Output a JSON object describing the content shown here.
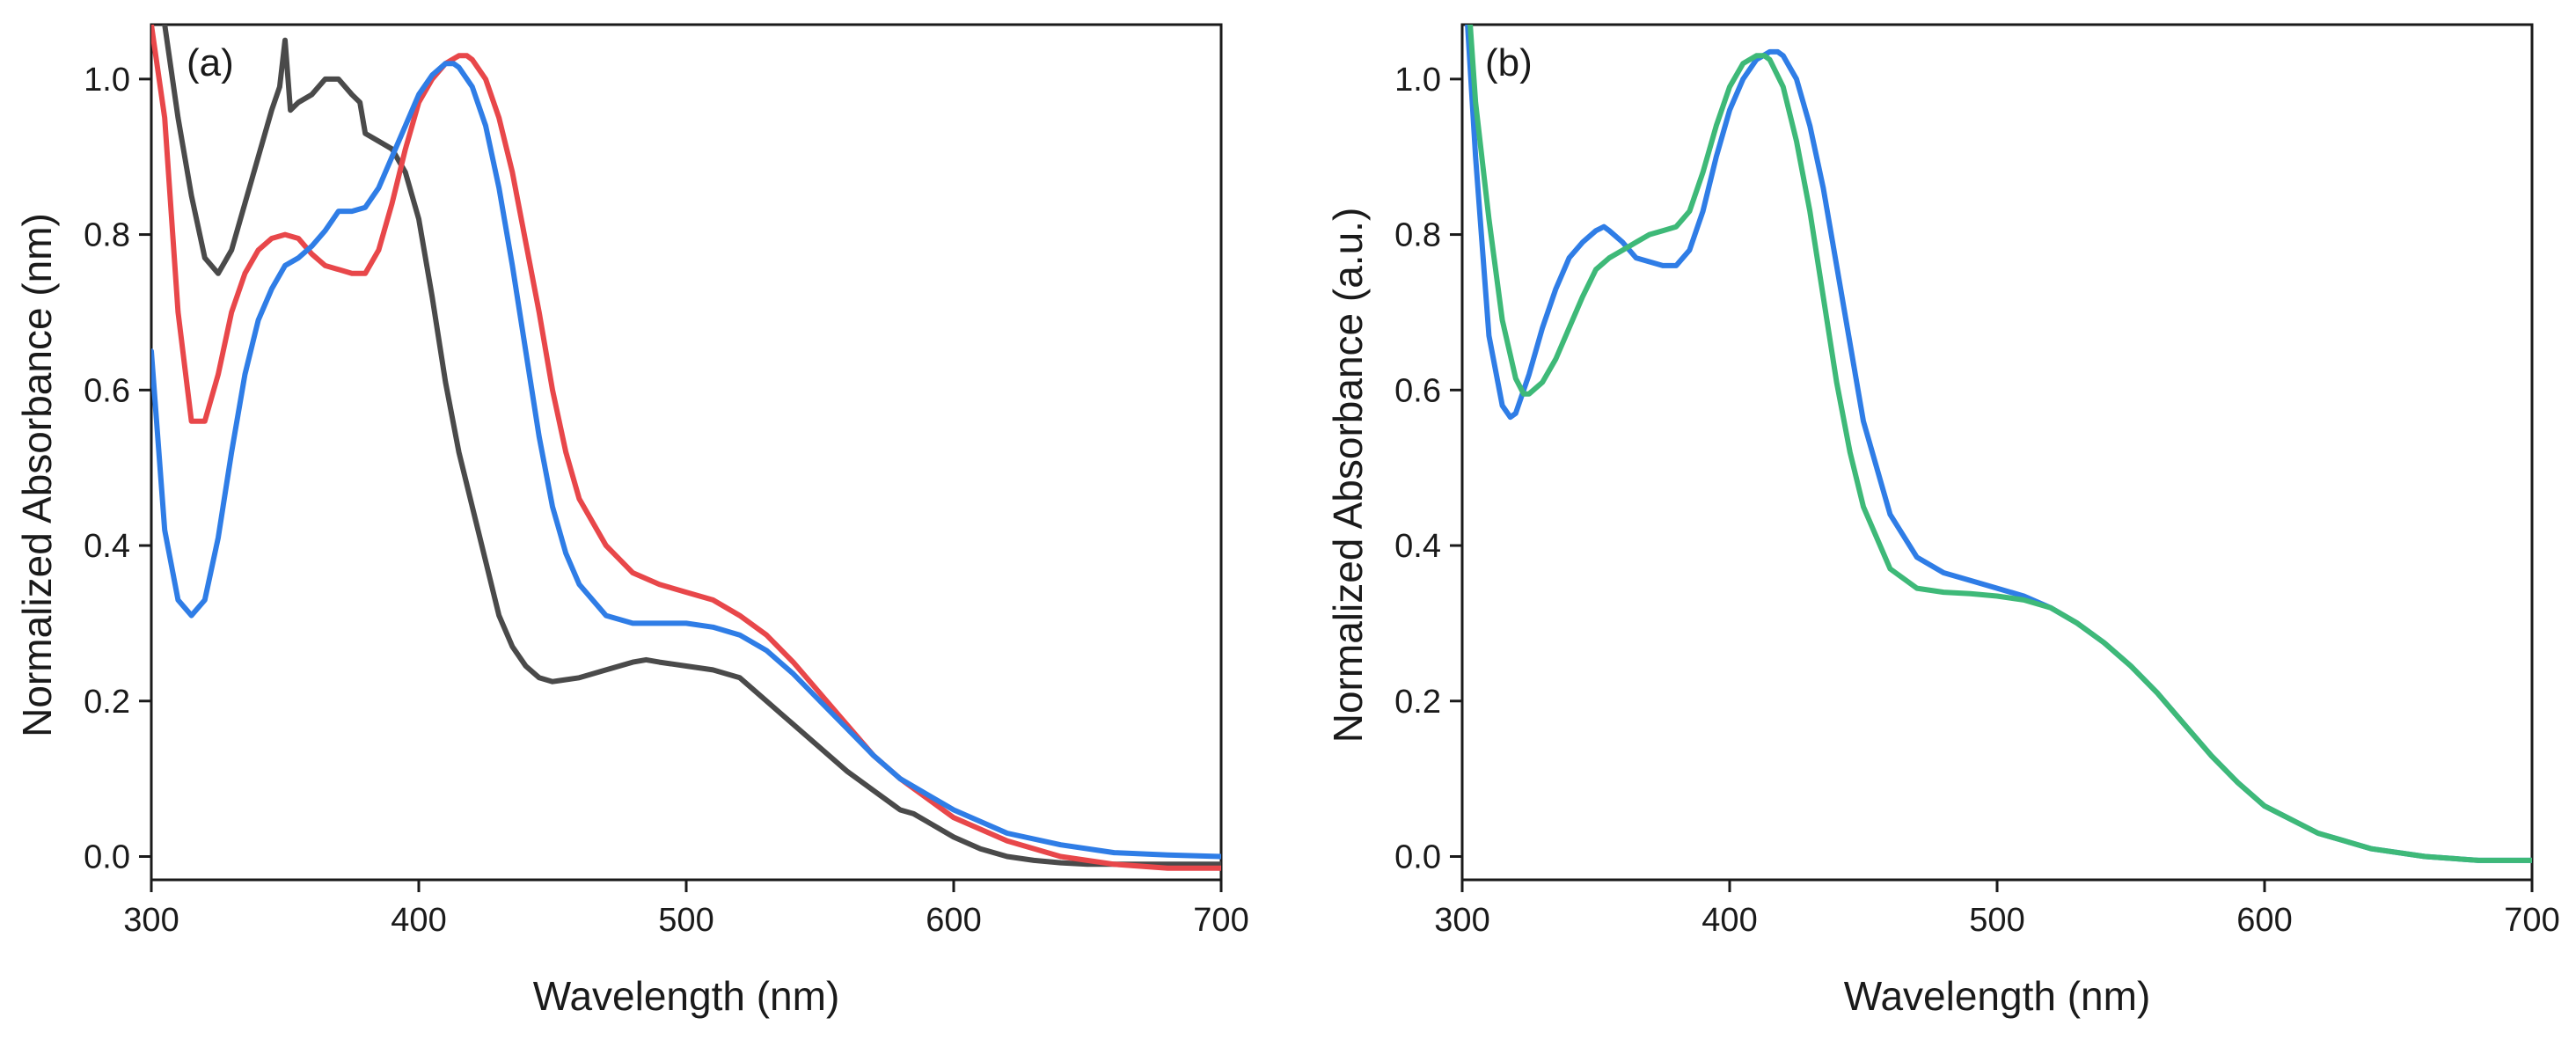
{
  "chart_data": [
    {
      "id": "a",
      "type": "line",
      "panel_label": "(a)",
      "xlabel": "Wavelength (nm)",
      "ylabel": "Normalized Absorbance (nm)",
      "xlim": [
        300,
        700
      ],
      "ylim": [
        -0.03,
        1.07
      ],
      "xticks": [
        300,
        400,
        500,
        600,
        700
      ],
      "xtick_labels": [
        "300",
        "400",
        "500",
        "600",
        "700"
      ],
      "yticks": [
        0.0,
        0.2,
        0.4,
        0.6,
        0.8,
        1.0
      ],
      "ytick_labels": [
        "0.0",
        "0.2",
        "0.4",
        "0.6",
        "0.8",
        "1.0"
      ],
      "grid": false,
      "series": [
        {
          "color": "#4a4a4a",
          "x": [
            305,
            310,
            315,
            320,
            325,
            330,
            335,
            340,
            345,
            348,
            350,
            352,
            355,
            360,
            365,
            370,
            375,
            378,
            380,
            385,
            390,
            395,
            400,
            405,
            410,
            415,
            420,
            425,
            430,
            435,
            440,
            445,
            450,
            460,
            470,
            480,
            485,
            490,
            500,
            510,
            520,
            530,
            540,
            550,
            560,
            570,
            580,
            585,
            590,
            600,
            610,
            620,
            630,
            640,
            650,
            660,
            680,
            700
          ],
          "y": [
            1.07,
            0.95,
            0.85,
            0.77,
            0.75,
            0.78,
            0.84,
            0.9,
            0.96,
            0.99,
            1.05,
            0.96,
            0.97,
            0.98,
            1.0,
            1.0,
            0.98,
            0.97,
            0.93,
            0.92,
            0.91,
            0.88,
            0.82,
            0.72,
            0.61,
            0.52,
            0.45,
            0.38,
            0.31,
            0.27,
            0.245,
            0.23,
            0.225,
            0.23,
            0.24,
            0.25,
            0.253,
            0.25,
            0.245,
            0.24,
            0.23,
            0.2,
            0.17,
            0.14,
            0.11,
            0.085,
            0.06,
            0.055,
            0.045,
            0.025,
            0.01,
            0.0,
            -0.005,
            -0.008,
            -0.01,
            -0.01,
            -0.01,
            -0.01
          ]
        },
        {
          "color": "#e8474a",
          "x": [
            300,
            305,
            310,
            315,
            320,
            325,
            330,
            335,
            340,
            345,
            350,
            355,
            360,
            365,
            370,
            375,
            380,
            385,
            390,
            395,
            400,
            405,
            410,
            415,
            418,
            420,
            425,
            430,
            435,
            440,
            445,
            450,
            455,
            460,
            470,
            480,
            490,
            500,
            510,
            520,
            530,
            540,
            550,
            560,
            570,
            580,
            590,
            600,
            620,
            640,
            660,
            680,
            700
          ],
          "y": [
            1.07,
            0.95,
            0.7,
            0.56,
            0.56,
            0.62,
            0.7,
            0.75,
            0.78,
            0.795,
            0.8,
            0.795,
            0.775,
            0.76,
            0.755,
            0.75,
            0.75,
            0.78,
            0.84,
            0.91,
            0.97,
            1.0,
            1.02,
            1.03,
            1.03,
            1.025,
            1.0,
            0.95,
            0.88,
            0.79,
            0.7,
            0.6,
            0.52,
            0.46,
            0.4,
            0.365,
            0.35,
            0.34,
            0.33,
            0.31,
            0.285,
            0.25,
            0.21,
            0.17,
            0.13,
            0.1,
            0.075,
            0.05,
            0.02,
            0.0,
            -0.01,
            -0.015,
            -0.015
          ]
        },
        {
          "color": "#2f7de6",
          "x": [
            300,
            305,
            310,
            315,
            320,
            325,
            330,
            335,
            340,
            345,
            350,
            355,
            360,
            365,
            370,
            375,
            380,
            385,
            390,
            395,
            400,
            405,
            410,
            413,
            415,
            420,
            425,
            430,
            435,
            440,
            445,
            450,
            455,
            460,
            470,
            480,
            490,
            500,
            510,
            520,
            530,
            540,
            550,
            560,
            570,
            580,
            590,
            600,
            620,
            640,
            660,
            680,
            700
          ],
          "y": [
            0.65,
            0.42,
            0.33,
            0.31,
            0.33,
            0.41,
            0.52,
            0.62,
            0.69,
            0.73,
            0.76,
            0.77,
            0.785,
            0.805,
            0.83,
            0.83,
            0.835,
            0.86,
            0.9,
            0.94,
            0.98,
            1.005,
            1.02,
            1.02,
            1.015,
            0.99,
            0.94,
            0.86,
            0.76,
            0.65,
            0.54,
            0.45,
            0.39,
            0.35,
            0.31,
            0.3,
            0.3,
            0.3,
            0.295,
            0.285,
            0.265,
            0.235,
            0.2,
            0.165,
            0.13,
            0.1,
            0.08,
            0.06,
            0.03,
            0.015,
            0.005,
            0.002,
            0.0
          ]
        }
      ]
    },
    {
      "id": "b",
      "type": "line",
      "panel_label": "(b)",
      "xlabel": "Wavelength (nm)",
      "ylabel": "Normalized Absorbance (a.u.)",
      "xlim": [
        300,
        700
      ],
      "ylim": [
        -0.03,
        1.07
      ],
      "xticks": [
        300,
        400,
        500,
        600,
        700
      ],
      "xtick_labels": [
        "300",
        "400",
        "500",
        "600",
        "700"
      ],
      "yticks": [
        0.0,
        0.2,
        0.4,
        0.6,
        0.8,
        1.0
      ],
      "ytick_labels": [
        "0.0",
        "0.2",
        "0.4",
        "0.6",
        "0.8",
        "1.0"
      ],
      "grid": false,
      "series": [
        {
          "color": "#2f7de6",
          "x": [
            302,
            305,
            310,
            315,
            318,
            320,
            325,
            330,
            335,
            340,
            345,
            350,
            353,
            355,
            360,
            365,
            370,
            375,
            380,
            385,
            390,
            395,
            400,
            405,
            410,
            415,
            418,
            420,
            425,
            430,
            435,
            440,
            445,
            450,
            460,
            470,
            480,
            490,
            500,
            510,
            520,
            530,
            540,
            550,
            560,
            570,
            580,
            590,
            600,
            620,
            640,
            660,
            680,
            700
          ],
          "y": [
            1.07,
            0.9,
            0.67,
            0.58,
            0.565,
            0.57,
            0.62,
            0.68,
            0.73,
            0.77,
            0.79,
            0.805,
            0.81,
            0.805,
            0.79,
            0.77,
            0.765,
            0.76,
            0.76,
            0.78,
            0.83,
            0.9,
            0.96,
            1.0,
            1.025,
            1.035,
            1.035,
            1.03,
            1.0,
            0.94,
            0.86,
            0.76,
            0.66,
            0.56,
            0.44,
            0.385,
            0.365,
            0.355,
            0.345,
            0.335,
            0.32,
            0.3,
            0.275,
            0.245,
            0.21,
            0.17,
            0.13,
            0.095,
            0.065,
            0.03,
            0.01,
            0.0,
            -0.005,
            -0.005
          ]
        },
        {
          "color": "#3eb978",
          "x": [
            303,
            305,
            310,
            315,
            320,
            323,
            325,
            330,
            335,
            340,
            345,
            350,
            355,
            360,
            365,
            370,
            375,
            380,
            385,
            390,
            395,
            400,
            405,
            410,
            413,
            415,
            420,
            425,
            430,
            435,
            440,
            445,
            450,
            460,
            470,
            480,
            490,
            500,
            510,
            520,
            530,
            540,
            550,
            560,
            570,
            580,
            590,
            600,
            620,
            640,
            660,
            680,
            700
          ],
          "y": [
            1.07,
            0.97,
            0.82,
            0.69,
            0.615,
            0.595,
            0.595,
            0.61,
            0.64,
            0.68,
            0.72,
            0.755,
            0.77,
            0.78,
            0.79,
            0.8,
            0.805,
            0.81,
            0.83,
            0.88,
            0.94,
            0.99,
            1.02,
            1.03,
            1.03,
            1.025,
            0.99,
            0.92,
            0.83,
            0.72,
            0.61,
            0.52,
            0.45,
            0.37,
            0.345,
            0.34,
            0.338,
            0.335,
            0.33,
            0.32,
            0.3,
            0.275,
            0.245,
            0.21,
            0.17,
            0.13,
            0.095,
            0.065,
            0.03,
            0.01,
            0.0,
            -0.005,
            -0.005
          ]
        }
      ]
    }
  ]
}
